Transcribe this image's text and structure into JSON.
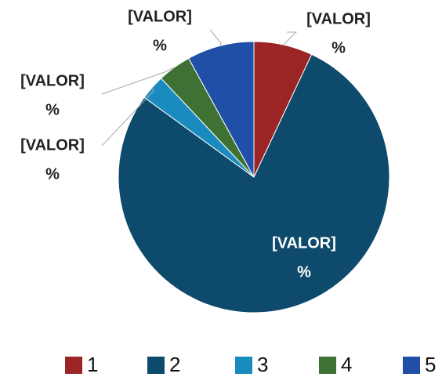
{
  "chart_data": {
    "type": "pie",
    "categories": [
      "1",
      "2",
      "3",
      "4",
      "5"
    ],
    "values": [
      7,
      78,
      3,
      4,
      8
    ],
    "value_labels": [
      [
        "[VALOR]",
        "%"
      ],
      [
        "[VALOR]",
        "%"
      ],
      [
        "[VALOR]",
        "%"
      ],
      [
        "[VALOR]",
        "%"
      ],
      [
        "[VALOR]",
        "%"
      ]
    ],
    "colors": [
      "#9b2424",
      "#0e4a6b",
      "#1a8bbf",
      "#3f7134",
      "#1f4fa6"
    ],
    "legend": "bottom"
  }
}
